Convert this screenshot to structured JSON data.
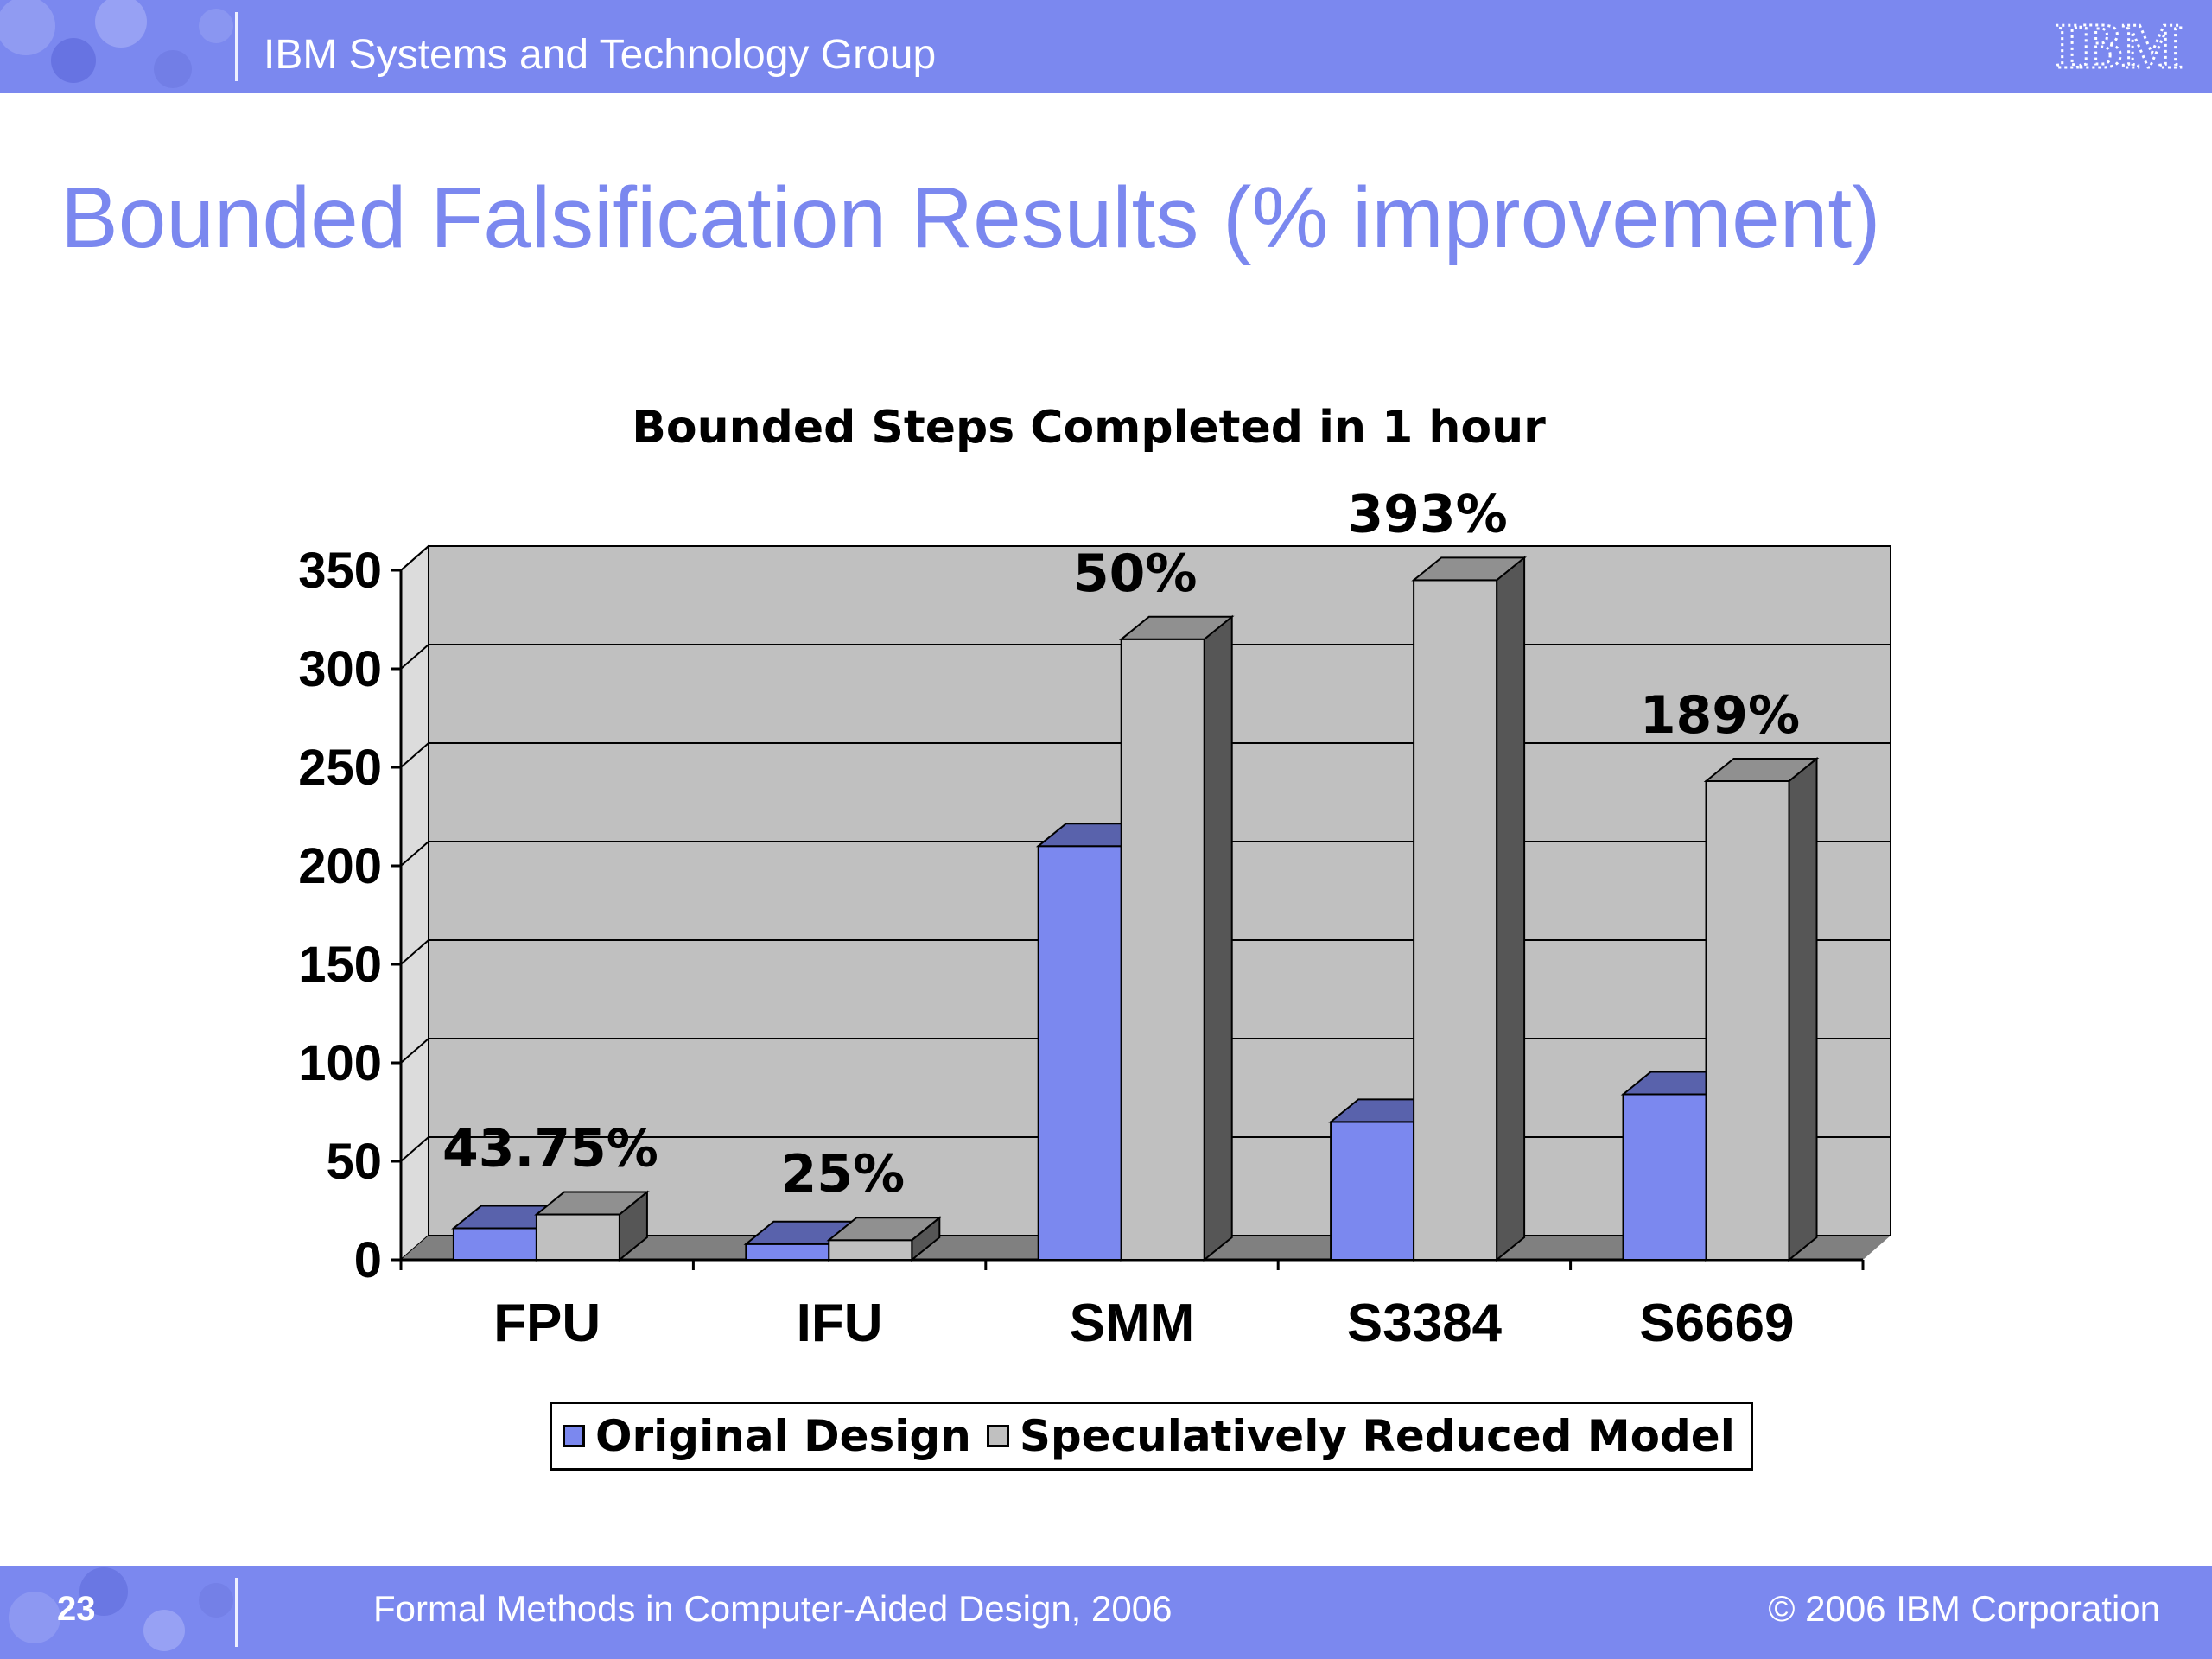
{
  "header": {
    "title": "IBM Systems and Technology Group",
    "logo_text": "IBM"
  },
  "slide": {
    "title": "Bounded Falsification Results (% improvement)"
  },
  "footer": {
    "page_number": "23",
    "conference": "Formal Methods in Computer-Aided Design, 2006",
    "copyright": "© 2006 IBM Corporation"
  },
  "colors": {
    "band": "#7b88ef",
    "original": "#7b88ef",
    "reduced": "#c0c0c0",
    "plot_wall": "#c0c0c0",
    "floor": "#808080"
  },
  "chart_data": {
    "type": "bar",
    "title": "Bounded Steps Completed in 1 hour",
    "categories": [
      "FPU",
      "IFU",
      "SMM",
      "S3384",
      "S6669"
    ],
    "series": [
      {
        "name": "Original Design",
        "values": [
          16,
          8,
          210,
          70,
          84
        ]
      },
      {
        "name": "Speculatively Reduced Model",
        "values": [
          23,
          10,
          315,
          345,
          243
        ]
      }
    ],
    "annotations": [
      "43.75%",
      "25%",
      "50%",
      "393%",
      "189%"
    ],
    "ylim": [
      0,
      350
    ],
    "yticks": [
      0,
      50,
      100,
      150,
      200,
      250,
      300,
      350
    ],
    "grid": true,
    "legend": "bottom",
    "three_d": true
  }
}
